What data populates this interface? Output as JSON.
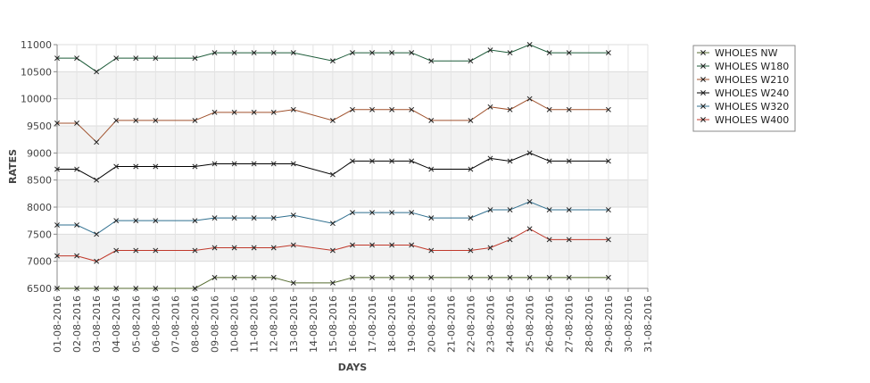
{
  "chart_data": {
    "type": "line",
    "title": "",
    "xlabel": "DAYS",
    "ylabel": "RATES",
    "ylim": [
      6500,
      11000
    ],
    "yticks": [
      6500,
      7000,
      7500,
      8000,
      8500,
      9000,
      9500,
      10000,
      10500,
      11000
    ],
    "grid": true,
    "legend_position": "top-right",
    "categories": [
      "01-08-2016",
      "02-08-2016",
      "03-08-2016",
      "04-08-2016",
      "05-08-2016",
      "06-08-2016",
      "07-08-2016",
      "08-08-2016",
      "09-08-2016",
      "10-08-2016",
      "11-08-2016",
      "12-08-2016",
      "13-08-2016",
      "14-08-2016",
      "15-08-2016",
      "16-08-2016",
      "17-08-2016",
      "18-08-2016",
      "19-08-2016",
      "20-08-2016",
      "21-08-2016",
      "22-08-2016",
      "23-08-2016",
      "24-08-2016",
      "25-08-2016",
      "26-08-2016",
      "27-08-2016",
      "28-08-2016",
      "29-08-2016",
      "30-08-2016",
      "31-08-2016"
    ],
    "series": [
      {
        "name": "WHOLES NW",
        "color": "#556b2f",
        "values": [
          6500,
          6500,
          6500,
          6500,
          6500,
          6500,
          null,
          6500,
          6700,
          6700,
          6700,
          6700,
          6600,
          null,
          6600,
          6700,
          6700,
          6700,
          6700,
          6700,
          null,
          6700,
          6700,
          6700,
          6700,
          6700,
          6700,
          null,
          6700,
          null,
          null
        ]
      },
      {
        "name": "WHOLES W180",
        "color": "#1e5c3a",
        "values": [
          10750,
          10750,
          10500,
          10750,
          10750,
          10750,
          null,
          10750,
          10850,
          10850,
          10850,
          10850,
          10850,
          null,
          10700,
          10850,
          10850,
          10850,
          10850,
          10700,
          null,
          10700,
          10900,
          10850,
          11000,
          10850,
          10850,
          null,
          10850,
          null,
          null
        ]
      },
      {
        "name": "WHOLES W210",
        "color": "#a0522d",
        "values": [
          9550,
          9550,
          9200,
          9600,
          9600,
          9600,
          null,
          9600,
          9750,
          9750,
          9750,
          9750,
          9800,
          null,
          9600,
          9800,
          9800,
          9800,
          9800,
          9600,
          null,
          9600,
          9850,
          9800,
          10000,
          9800,
          9800,
          null,
          9800,
          null,
          null
        ]
      },
      {
        "name": "WHOLES W240",
        "color": "#000000",
        "values": [
          8700,
          8700,
          8500,
          8750,
          8750,
          8750,
          null,
          8750,
          8800,
          8800,
          8800,
          8800,
          8800,
          null,
          8600,
          8850,
          8850,
          8850,
          8850,
          8700,
          null,
          8700,
          8900,
          8850,
          9000,
          8850,
          8850,
          null,
          8850,
          null,
          null
        ]
      },
      {
        "name": "WHOLES W320",
        "color": "#2f6f8f",
        "values": [
          7670,
          7670,
          7500,
          7750,
          7750,
          7750,
          null,
          7750,
          7800,
          7800,
          7800,
          7800,
          7850,
          null,
          7700,
          7900,
          7900,
          7900,
          7900,
          7800,
          null,
          7800,
          7950,
          7950,
          8100,
          7950,
          7950,
          null,
          7950,
          null,
          null
        ]
      },
      {
        "name": "WHOLES W400",
        "color": "#c0392b",
        "values": [
          7100,
          7100,
          7000,
          7200,
          7200,
          7200,
          null,
          7200,
          7250,
          7250,
          7250,
          7250,
          7300,
          null,
          7200,
          7300,
          7300,
          7300,
          7300,
          7200,
          null,
          7200,
          7250,
          7400,
          7600,
          7400,
          7400,
          null,
          7400,
          null,
          null
        ]
      }
    ]
  }
}
